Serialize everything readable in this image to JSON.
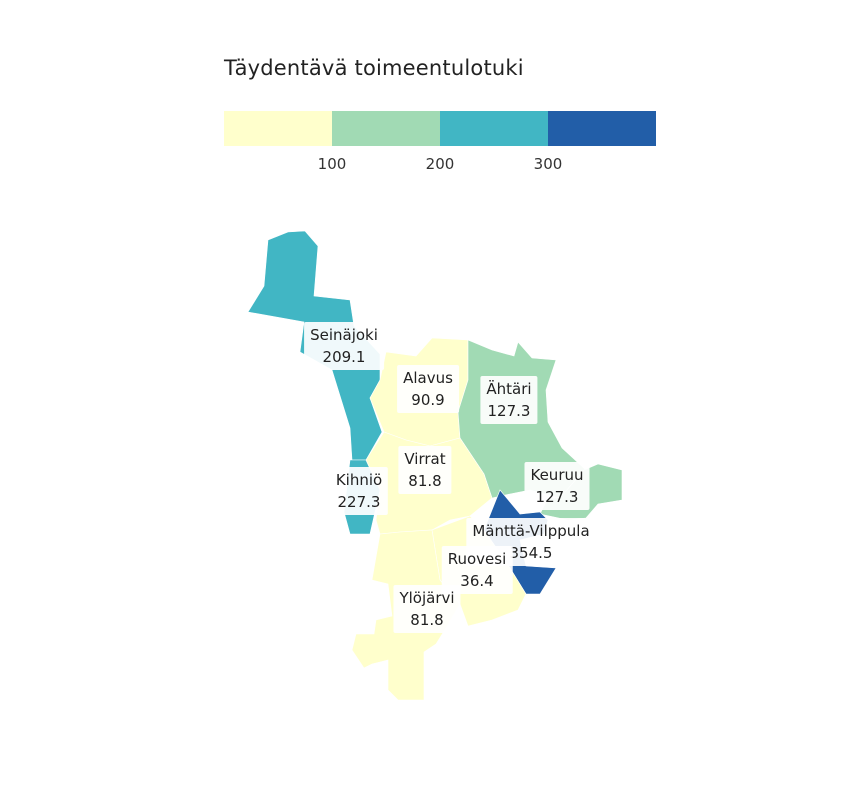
{
  "title": "Täydentävä toimeentulotuki",
  "legend": {
    "colors": [
      "#ffffcc",
      "#a1dab4",
      "#41b6c4",
      "#225ea8"
    ],
    "ticks": [
      "100",
      "200",
      "300"
    ]
  },
  "municipalities": [
    {
      "name": "Seinäjoki",
      "value": "209.1",
      "color": "#41b6c4"
    },
    {
      "name": "Alavus",
      "value": "90.9",
      "color": "#ffffcc"
    },
    {
      "name": "Ähtäri",
      "value": "127.3",
      "color": "#a1dab4"
    },
    {
      "name": "Kihniö",
      "value": "227.3",
      "color": "#41b6c4"
    },
    {
      "name": "Virrat",
      "value": "81.8",
      "color": "#ffffcc"
    },
    {
      "name": "Keuruu",
      "value": "127.3",
      "color": "#a1dab4"
    },
    {
      "name": "Mänttä-Vilppula",
      "value": "354.5",
      "color": "#225ea8"
    },
    {
      "name": "Ruovesi",
      "value": "36.4",
      "color": "#ffffcc"
    },
    {
      "name": "Ylöjärvi",
      "value": "81.8",
      "color": "#ffffcc"
    }
  ]
}
